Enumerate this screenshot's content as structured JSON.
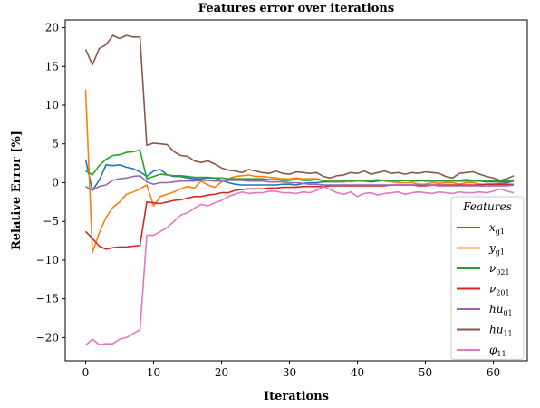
{
  "chart_data": {
    "type": "line",
    "title": "Features error over iterations",
    "xlabel": "Iterations",
    "ylabel": "Relative Error [%]",
    "xlim": [
      -3,
      65
    ],
    "ylim": [
      -23,
      21
    ],
    "xticks": [
      0,
      10,
      20,
      30,
      40,
      50,
      60
    ],
    "yticks": [
      -20,
      -15,
      -10,
      -5,
      0,
      5,
      10,
      15,
      20
    ],
    "grid": false,
    "legend": {
      "title": "Features",
      "placement": "right"
    },
    "series": [
      {
        "name": "x_{g_1}",
        "label_main": "x",
        "label_sub": "g1",
        "color": "#1f77b4",
        "y": [
          3.0,
          -1.0,
          0.3,
          2.3,
          2.2,
          2.3,
          2.0,
          1.8,
          1.4,
          0.8,
          1.5,
          1.7,
          1.0,
          0.8,
          0.8,
          0.6,
          0.5,
          0.5,
          0.6,
          0.6,
          0.3,
          0.0,
          -0.2,
          -0.3,
          -0.3,
          -0.3,
          -0.3,
          -0.3,
          -0.3,
          -0.2,
          -0.2,
          -0.3,
          -0.1,
          0.0,
          0.0,
          0.1,
          0.1,
          0.1,
          0.1,
          0.2,
          0.2,
          0.2,
          0.1,
          0.2,
          0.3,
          0.3,
          0.2,
          0.3,
          0.3,
          0.3,
          0.2,
          0.2,
          0.2,
          0.2,
          0.2,
          0.3,
          0.4,
          0.3,
          0.2,
          0.1,
          0.1,
          0.1,
          0.0,
          0.2
        ]
      },
      {
        "name": "y_{g_1}",
        "label_main": "y",
        "label_sub": "g1",
        "color": "#ff7f0e",
        "y": [
          12.0,
          -9.0,
          -6.5,
          -4.5,
          -3.2,
          -2.5,
          -1.5,
          -1.2,
          -0.8,
          -0.3,
          -3.0,
          -1.8,
          -1.5,
          -1.2,
          -0.8,
          -0.5,
          -0.7,
          0.2,
          -0.3,
          -0.6,
          0.1,
          0.5,
          0.8,
          0.9,
          1.0,
          0.8,
          0.8,
          0.7,
          0.6,
          0.5,
          0.5,
          0.6,
          0.5,
          0.5,
          0.5,
          0.3,
          0.2,
          0.2,
          0.2,
          0.1,
          0.2,
          0.3,
          0.3,
          0.4,
          0.2,
          0.1,
          0.0,
          0.0,
          0.0,
          -0.2,
          -0.2,
          0.0,
          -0.1,
          0.0,
          0.0,
          -0.2,
          0.0,
          0.0,
          -0.2,
          -0.2,
          -0.2,
          -0.1,
          -0.2,
          -0.2
        ]
      },
      {
        "name": "nu_{02_1}",
        "label_main": "ν",
        "label_sub": "021",
        "color": "#2ca02c",
        "y": [
          1.5,
          1.0,
          2.2,
          3.0,
          3.5,
          3.6,
          3.9,
          4.0,
          4.2,
          0.5,
          0.8,
          1.1,
          1.0,
          0.9,
          0.9,
          0.8,
          0.7,
          0.7,
          0.7,
          0.6,
          0.6,
          0.5,
          0.5,
          0.5,
          0.5,
          0.5,
          0.5,
          0.4,
          0.4,
          0.3,
          0.3,
          0.4,
          0.3,
          0.3,
          0.4,
          0.3,
          0.3,
          0.3,
          0.3,
          0.3,
          0.3,
          0.3,
          0.3,
          0.3,
          0.3,
          0.3,
          0.3,
          0.3,
          0.2,
          0.2,
          0.3,
          0.3,
          0.3,
          0.3,
          0.2,
          0.2,
          0.2,
          0.2,
          0.2,
          0.3,
          0.2,
          0.2,
          0.2,
          0.3
        ]
      },
      {
        "name": "nu_{20_1}",
        "label_main": "ν",
        "label_sub": "201",
        "color": "#d62728",
        "y": [
          -6.3,
          -7.2,
          -8.2,
          -8.6,
          -8.4,
          -8.3,
          -8.3,
          -8.2,
          -8.1,
          -2.5,
          -2.6,
          -2.7,
          -2.5,
          -2.3,
          -2.2,
          -2.0,
          -1.8,
          -1.8,
          -1.6,
          -1.5,
          -1.3,
          -1.3,
          -1.0,
          -0.9,
          -0.8,
          -0.8,
          -0.8,
          -0.7,
          -0.7,
          -0.6,
          -0.6,
          -0.6,
          -0.5,
          -0.5,
          -0.5,
          -0.5,
          -0.4,
          -0.4,
          -0.4,
          -0.4,
          -0.4,
          -0.4,
          -0.4,
          -0.4,
          -0.4,
          -0.3,
          -0.3,
          -0.3,
          -0.3,
          -0.4,
          -0.4,
          -0.3,
          -0.3,
          -0.3,
          -0.3,
          -0.3,
          -0.3,
          -0.3,
          -0.3,
          -0.2,
          -0.2,
          -0.2,
          -0.2,
          -0.3
        ]
      },
      {
        "name": "hu_{0_1}",
        "label_main": "hu",
        "label_sub": "01",
        "color": "#9467bd",
        "y": [
          -0.5,
          -1.0,
          -0.5,
          -0.3,
          0.3,
          0.5,
          0.6,
          0.8,
          0.9,
          0.1,
          -0.2,
          0.0,
          0.0,
          0.1,
          0.2,
          0.2,
          0.2,
          0.3,
          0.3,
          0.2,
          0.2,
          0.3,
          0.3,
          0.3,
          0.2,
          0.2,
          0.2,
          0.1,
          0.1,
          0.1,
          0.0,
          0.0,
          -0.1,
          -0.2,
          -0.2,
          -0.3,
          -0.3,
          -0.3,
          -0.3,
          -0.3,
          -0.3,
          -0.3,
          -0.3,
          -0.3,
          -0.3,
          -0.3,
          -0.3,
          -0.3,
          -0.3,
          -0.3,
          -0.3,
          -0.3,
          -0.4,
          -0.4,
          -0.4,
          -0.4,
          -0.4,
          -0.4,
          -0.4,
          -0.4,
          -0.4,
          -0.4,
          -0.4,
          -0.3
        ]
      },
      {
        "name": "hu_{1_1}",
        "label_main": "hu",
        "label_sub": "11",
        "color": "#8c564b",
        "y": [
          17.2,
          15.2,
          17.3,
          17.8,
          19.0,
          18.6,
          19.0,
          18.8,
          18.8,
          4.8,
          5.1,
          5.0,
          4.9,
          4.0,
          3.5,
          3.4,
          2.8,
          2.6,
          2.8,
          2.4,
          1.9,
          1.6,
          1.5,
          1.3,
          1.7,
          1.5,
          1.3,
          1.2,
          1.5,
          1.2,
          1.1,
          1.4,
          1.3,
          1.2,
          1.3,
          0.8,
          0.6,
          0.9,
          1.0,
          1.3,
          1.2,
          1.5,
          1.1,
          1.3,
          1.5,
          1.2,
          1.3,
          1.1,
          1.3,
          1.2,
          1.4,
          1.3,
          1.2,
          0.8,
          0.6,
          1.2,
          1.3,
          1.4,
          1.1,
          0.8,
          0.6,
          0.3,
          0.5,
          0.9
        ]
      },
      {
        "name": "phi_{1_1}",
        "label_main": "φ",
        "label_sub": "11",
        "color": "#e377c2",
        "y": [
          -21.0,
          -20.2,
          -20.9,
          -20.8,
          -20.8,
          -20.2,
          -20.0,
          -19.5,
          -19.0,
          -6.8,
          -6.8,
          -6.3,
          -5.8,
          -5.0,
          -4.2,
          -3.9,
          -3.3,
          -2.8,
          -3.0,
          -2.6,
          -2.3,
          -1.8,
          -1.5,
          -1.2,
          -1.4,
          -1.3,
          -1.3,
          -1.1,
          -1.1,
          -1.3,
          -1.3,
          -1.4,
          -1.2,
          -1.3,
          -1.0,
          -0.5,
          -0.9,
          -1.3,
          -1.5,
          -1.2,
          -1.8,
          -1.4,
          -1.3,
          -1.6,
          -1.4,
          -1.3,
          -1.2,
          -1.5,
          -1.3,
          -1.2,
          -1.3,
          -1.4,
          -1.2,
          -1.3,
          -1.4,
          -1.2,
          -1.3,
          -1.3,
          -1.2,
          -1.3,
          -1.1,
          -0.8,
          -1.1,
          -1.3
        ]
      }
    ]
  }
}
